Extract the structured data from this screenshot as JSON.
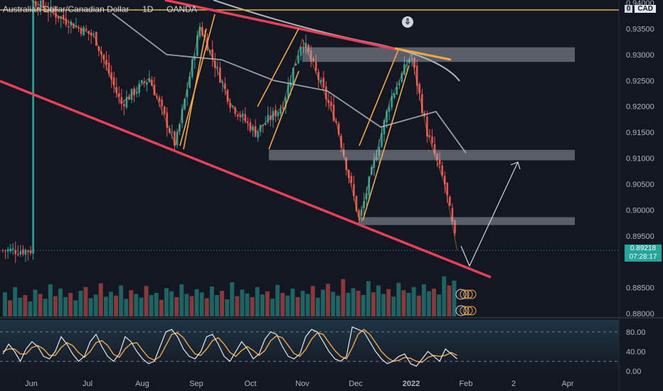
{
  "header": {
    "symbol": "Australian Dollar/Canadian Dollar",
    "separator": " · ",
    "interval": "1D",
    "broker": "OANDA"
  },
  "currency_badge": {
    "zero": "0",
    "currency": "CAD"
  },
  "last_price": {
    "value": "0.89218",
    "countdown": "07:28:17"
  },
  "colors": {
    "background": "#131722",
    "up": "#26a69a",
    "down": "#ef5350",
    "trendline": "#e84057",
    "channel_up": "#f5a742",
    "zone": "#b2b5be",
    "ma": "#b2b5be",
    "stoch_k": "#e8e8e8",
    "stoch_d": "#f5a742",
    "level_line": "#e0b33a"
  },
  "chart_data": [
    {
      "type": "candlestick",
      "title": "Australian Dollar/Canadian Dollar · 1D · OANDA",
      "x_ticks": [
        "Jun",
        "Jul",
        "Aug",
        "Sep",
        "Oct",
        "Nov",
        "Dec",
        "2022",
        "Feb",
        "2",
        "Apr"
      ],
      "y_ticks": [
        "0.94000",
        "0.93500",
        "0.93000",
        "0.92500",
        "0.92000",
        "0.91500",
        "0.91000",
        "0.90500",
        "0.90000",
        "0.89500",
        "0.88500",
        "0.88000"
      ],
      "ylim": [
        0.88,
        0.94
      ],
      "last_price": 0.89218,
      "approx_close_path": [
        {
          "x": "Jun 01",
          "y": 0.9405
        },
        {
          "x": "Jun 20",
          "y": 0.9365
        },
        {
          "x": "Jul 05",
          "y": 0.9335
        },
        {
          "x": "Jul 20",
          "y": 0.9205
        },
        {
          "x": "Aug 05",
          "y": 0.9255
        },
        {
          "x": "Aug 20",
          "y": 0.9125
        },
        {
          "x": "Sep 03",
          "y": 0.9355
        },
        {
          "x": "Sep 20",
          "y": 0.9205
        },
        {
          "x": "Oct 04",
          "y": 0.915
        },
        {
          "x": "Oct 20",
          "y": 0.92
        },
        {
          "x": "Nov 01",
          "y": 0.933
        },
        {
          "x": "Nov 20",
          "y": 0.917
        },
        {
          "x": "Dec 03",
          "y": 0.898
        },
        {
          "x": "Dec 20",
          "y": 0.921
        },
        {
          "x": "Jan 01",
          "y": 0.93
        },
        {
          "x": "Jan 10",
          "y": 0.915
        },
        {
          "x": "Jan 20",
          "y": 0.905
        },
        {
          "x": "Jan 27",
          "y": 0.8922
        }
      ],
      "moving_average_approx": [
        {
          "x": "Jul 15",
          "y": 0.938
        },
        {
          "x": "Aug 15",
          "y": 0.93
        },
        {
          "x": "Sep 15",
          "y": 0.929
        },
        {
          "x": "Oct 15",
          "y": 0.925
        },
        {
          "x": "Nov 15",
          "y": 0.923
        },
        {
          "x": "Dec 15",
          "y": 0.916
        },
        {
          "x": "Jan 15",
          "y": 0.919
        },
        {
          "x": "Feb 01",
          "y": 0.911
        }
      ],
      "zones": [
        {
          "from": "Nov 01",
          "to": "Feb 15",
          "low": 0.929,
          "high": 0.931
        },
        {
          "from": "Oct 12",
          "to": "Feb 15",
          "low": 0.91,
          "high": 0.9112
        },
        {
          "from": "Dec 03",
          "to": "Feb 15",
          "low": 0.8975,
          "high": 0.8982
        }
      ],
      "projection_arrow": [
        {
          "x": "Jan 27",
          "y": 0.8915
        },
        {
          "x": "Feb 05",
          "y": 0.8915
        },
        {
          "x": "Feb 18",
          "y": 0.9095
        }
      ]
    },
    {
      "type": "bar",
      "title": "Volume",
      "note": "histogram below price pane, colored up/down",
      "values_relative": [
        0.45,
        0.3,
        0.55,
        0.35,
        0.4,
        0.28,
        0.5,
        0.42,
        0.33,
        0.6,
        0.38,
        0.52,
        0.36,
        0.44,
        0.3,
        0.48,
        0.55,
        0.34,
        0.41,
        0.62,
        0.37,
        0.46,
        0.39,
        0.58,
        0.33,
        0.49,
        0.42,
        0.35,
        0.57,
        0.4,
        0.44,
        0.31,
        0.53,
        0.47,
        0.36,
        0.6,
        0.42,
        0.38,
        0.51,
        0.45,
        0.34,
        0.56,
        0.4,
        0.48,
        0.32,
        0.64,
        0.38,
        0.5,
        0.43,
        0.36,
        0.55,
        0.41,
        0.47,
        0.33,
        0.59,
        0.44,
        0.39,
        0.52,
        0.36,
        0.48,
        0.42,
        0.57,
        0.35,
        0.5,
        0.61,
        0.46,
        0.39,
        0.7,
        0.44,
        0.53,
        0.48,
        0.4,
        0.66,
        0.45,
        0.58,
        0.42,
        0.51,
        0.37,
        0.63,
        0.49,
        0.44,
        0.55,
        0.39,
        0.6,
        0.47,
        0.52,
        0.41,
        0.75,
        0.58,
        0.67
      ]
    },
    {
      "type": "line",
      "title": "Stochastic",
      "y_ticks": [
        "80.00",
        "40.00",
        "0.00"
      ],
      "ylim": [
        0,
        100
      ],
      "k_values": [
        35,
        55,
        40,
        20,
        45,
        60,
        50,
        30,
        25,
        40,
        70,
        55,
        35,
        20,
        30,
        60,
        75,
        50,
        30,
        20,
        35,
        70,
        60,
        40,
        25,
        15,
        20,
        50,
        80,
        85,
        70,
        45,
        30,
        25,
        40,
        70,
        75,
        55,
        30,
        20,
        40,
        60,
        45,
        25,
        35,
        65,
        80,
        75,
        50,
        30,
        25,
        35,
        70,
        85,
        80,
        60,
        40,
        25,
        20,
        30,
        90,
        85,
        80,
        60,
        40,
        25,
        15,
        20,
        30,
        35,
        15,
        10,
        25,
        40,
        30,
        20,
        45,
        35,
        25
      ],
      "d_values": [
        40,
        45,
        45,
        35,
        35,
        48,
        52,
        45,
        32,
        32,
        48,
        58,
        52,
        38,
        28,
        40,
        58,
        62,
        52,
        34,
        28,
        45,
        56,
        58,
        42,
        28,
        22,
        30,
        52,
        75,
        78,
        68,
        50,
        35,
        32,
        45,
        62,
        68,
        55,
        38,
        30,
        42,
        50,
        42,
        32,
        42,
        62,
        72,
        68,
        52,
        36,
        30,
        44,
        65,
        78,
        75,
        58,
        42,
        30,
        25,
        48,
        75,
        85,
        75,
        58,
        40,
        28,
        20,
        22,
        28,
        26,
        20,
        18,
        28,
        32,
        30,
        32,
        38,
        32
      ]
    }
  ]
}
